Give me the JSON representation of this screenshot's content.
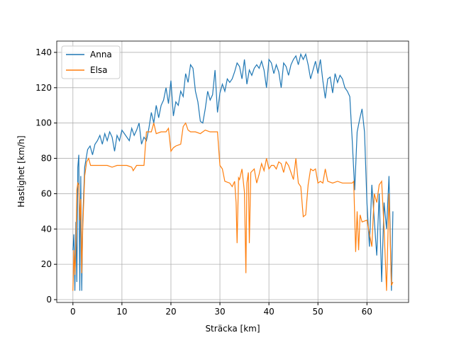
{
  "chart_data": {
    "type": "line",
    "xlabel": "Sträcka [km]",
    "ylabel": "Hastighet [km/h]",
    "xlim": [
      -3.3,
      68.5
    ],
    "ylim": [
      -1.6,
      146.4
    ],
    "xticks": [
      0,
      10,
      20,
      30,
      40,
      50,
      60
    ],
    "yticks": [
      0,
      20,
      40,
      60,
      80,
      100,
      120,
      140
    ],
    "grid": true,
    "legend": "upper-left",
    "series": [
      {
        "name": "Anna",
        "color": "#1f77b4",
        "x": [
          0,
          0.2,
          0.4,
          0.6,
          0.8,
          1.0,
          1.2,
          1.4,
          1.6,
          1.8,
          2.0,
          2.4,
          3,
          3.5,
          4,
          4.5,
          5,
          5.5,
          6,
          6.5,
          7,
          7.5,
          8,
          8.5,
          9,
          9.5,
          10,
          10.5,
          11,
          11.5,
          12,
          12.5,
          13,
          13.5,
          14,
          14.5,
          15,
          15.5,
          16,
          16.5,
          17,
          17.5,
          18,
          18.5,
          19,
          19.5,
          20,
          20.5,
          21,
          21.5,
          22,
          22.5,
          23,
          23.5,
          24,
          24.5,
          25,
          25.5,
          26,
          26.5,
          27,
          27.5,
          28,
          28.5,
          29,
          29.5,
          30,
          30.5,
          31,
          31.5,
          32,
          32.5,
          33,
          33.5,
          34,
          34.5,
          35,
          35.5,
          36,
          36.5,
          37,
          37.5,
          38,
          38.5,
          39,
          39.5,
          40,
          40.5,
          41,
          41.5,
          42,
          42.5,
          43,
          43.5,
          44,
          44.5,
          45,
          45.5,
          46,
          46.5,
          47,
          47.5,
          48,
          48.5,
          49,
          49.5,
          50,
          50.5,
          51,
          51.5,
          52,
          52.5,
          53,
          53.5,
          54,
          54.5,
          55,
          55.5,
          56,
          56.5,
          57,
          57.5,
          58,
          58.5,
          59,
          59.5,
          60,
          60.5,
          61,
          61.5,
          62,
          62.5,
          63,
          63.5,
          64,
          64.5,
          65,
          65.3
        ],
        "values": [
          28,
          37,
          5,
          44,
          10,
          75,
          82,
          5,
          70,
          5,
          45,
          75,
          85,
          87,
          82,
          88,
          90,
          93,
          88,
          94,
          90,
          95,
          92,
          84,
          93,
          90,
          96,
          94,
          92,
          90,
          97,
          93,
          96,
          100,
          88,
          92,
          90,
          97,
          106,
          100,
          110,
          103,
          110,
          113,
          120,
          111,
          124,
          104,
          112,
          110,
          118,
          115,
          128,
          123,
          133,
          131,
          118,
          112,
          101,
          100,
          108,
          118,
          113,
          116,
          130,
          106,
          117,
          122,
          118,
          125,
          123,
          125,
          129,
          134,
          132,
          125,
          136,
          122,
          130,
          127,
          131,
          133,
          131,
          135,
          130,
          120,
          136,
          134,
          128,
          133,
          129,
          120,
          134,
          132,
          127,
          133,
          136,
          138,
          133,
          139,
          136,
          139,
          133,
          125,
          130,
          135,
          128,
          136,
          124,
          114,
          125,
          126,
          117,
          128,
          123,
          127,
          125,
          120,
          118,
          115,
          90,
          62,
          95,
          102,
          108,
          95,
          55,
          30,
          65,
          45,
          25,
          60,
          10,
          55,
          40,
          70,
          5,
          50
        ]
      },
      {
        "name": "Elsa",
        "color": "#ff7f0e",
        "x": [
          0,
          0.2,
          0.4,
          0.6,
          0.8,
          1,
          1.2,
          1.4,
          1.6,
          1.8,
          2.0,
          2.4,
          2.8,
          3.2,
          3.6,
          4,
          5,
          6,
          7,
          8,
          9,
          10,
          11,
          12,
          12.3,
          13,
          14,
          14.5,
          15,
          16,
          16.5,
          17,
          18,
          19,
          19.5,
          20,
          20.5,
          21,
          22,
          22.5,
          23,
          23.5,
          24,
          25,
          26,
          27,
          28,
          29,
          29.5,
          30,
          30.5,
          31,
          32,
          32.5,
          33,
          33.3,
          33.5,
          33.8,
          34,
          34.5,
          35,
          35.3,
          35.5,
          35.8,
          36,
          36.3,
          37,
          37.5,
          38,
          38.5,
          39,
          39.5,
          40,
          40.5,
          41,
          41.5,
          42,
          42.5,
          43,
          43.5,
          44,
          44.5,
          45,
          45.5,
          46,
          46.5,
          47,
          47.5,
          48,
          48.5,
          49,
          49.5,
          50,
          50.5,
          51,
          51.5,
          52,
          53,
          54,
          55,
          56,
          57,
          57.3,
          57.7,
          58,
          58.3,
          58.6,
          59,
          60,
          61,
          61.5,
          62,
          62.5,
          63,
          63.5,
          64,
          64.5,
          65,
          65.3
        ],
        "values": [
          5,
          28,
          14,
          30,
          62,
          66,
          65,
          45,
          57,
          15,
          40,
          70,
          78,
          80,
          76,
          76,
          76,
          76,
          76,
          75,
          76,
          76,
          76,
          75,
          73,
          76,
          76,
          76,
          95,
          95,
          100,
          94,
          95,
          95,
          97,
          84,
          86,
          87,
          88,
          98,
          100,
          96,
          95,
          95,
          94,
          96,
          95,
          95,
          95,
          76,
          74,
          67,
          66,
          64,
          67,
          55,
          32,
          69,
          68,
          74,
          61,
          15,
          66,
          72,
          32,
          72,
          74,
          66,
          71,
          77,
          73,
          80,
          74,
          76,
          76,
          74,
          78,
          77,
          72,
          78,
          76,
          72,
          68,
          80,
          66,
          64,
          47,
          48,
          65,
          74,
          73,
          74,
          66,
          67,
          66,
          74,
          67,
          66,
          67,
          66,
          66,
          66,
          67,
          27,
          50,
          28,
          48,
          44,
          45,
          30,
          60,
          55,
          65,
          67,
          40,
          5,
          60,
          8,
          10
        ]
      }
    ]
  }
}
